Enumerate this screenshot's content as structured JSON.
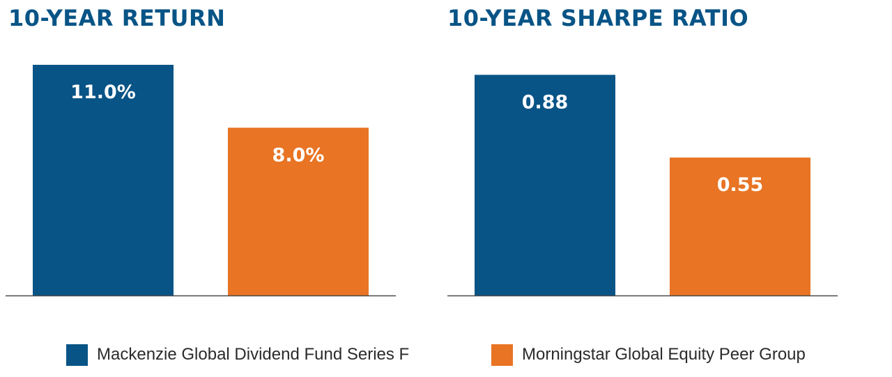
{
  "colors": {
    "fund": "#085486",
    "peer": "#e87424",
    "title": "#085486",
    "axis": "#4a4a4a",
    "label": "#ffffff"
  },
  "chart_data": [
    {
      "type": "bar",
      "title": "10-YEAR RETURN",
      "categories": [
        "Mackenzie Global Dividend Fund Series F",
        "Morningstar Global Equity Peer Group"
      ],
      "values": [
        11.0,
        8.0
      ],
      "data_labels": [
        "11.0%",
        "8.0%"
      ],
      "ylim": [
        0,
        11.0
      ],
      "grid": false
    },
    {
      "type": "bar",
      "title": "10-YEAR SHARPE RATIO",
      "categories": [
        "Mackenzie Global Dividend Fund Series F",
        "Morningstar Global Equity Peer Group"
      ],
      "values": [
        0.88,
        0.55
      ],
      "data_labels": [
        "0.88",
        "0.55"
      ],
      "ylim": [
        0,
        0.92
      ],
      "grid": false
    }
  ],
  "legend": {
    "placement": "bottom",
    "items": [
      {
        "label": "Mackenzie Global Dividend Fund Series F",
        "color": "#085486"
      },
      {
        "label": "Morningstar Global Equity Peer Group",
        "color": "#e87424"
      }
    ]
  }
}
